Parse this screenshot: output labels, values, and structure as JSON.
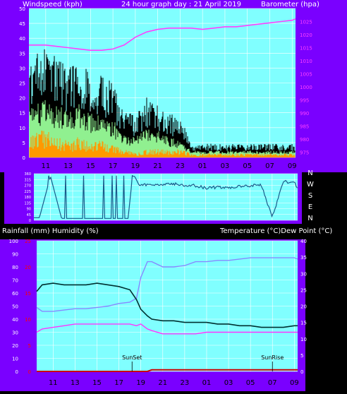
{
  "header": {
    "left": "Windspeed (kph)",
    "center": "24 hour graph day : 21 April 2019",
    "right": "Barometer (hpa)"
  },
  "time_labels": [
    "11",
    "13",
    "15",
    "17",
    "19",
    "21",
    "23",
    "01",
    "03",
    "05",
    "07",
    "09"
  ],
  "direction_labels": [
    "N",
    "W",
    "S",
    "E",
    "N"
  ],
  "bottom_header": {
    "left": "Rainfall (mm)  Humidity (%)",
    "right": "Temperature (°C)Dew Point (°C)"
  },
  "colors": {
    "frame": "#7a00ff",
    "plot_bg": "#80ffff",
    "axis_text": "#ffffff",
    "gust": "#000000",
    "avg_wind": "#90f090",
    "wind_min": "#ff9900",
    "barometer": "#ff40ff",
    "direction": "#1a5a8a",
    "humidity": "#8888ff",
    "temperature": "#003030",
    "dewpoint": "#ff33ff",
    "rain": "#cc0000",
    "red_axis": "#ff0000"
  },
  "chart_data": [
    {
      "type": "line",
      "title": "24 hour graph day : 21 April 2019",
      "ylabel": "Windspeed (kph)",
      "ylim": [
        0,
        50
      ],
      "y_ticks": [
        0,
        5,
        10,
        15,
        20,
        25,
        30,
        35,
        40,
        45,
        50
      ],
      "y2label": "Barometer (hpa)",
      "y2lim": [
        973,
        1030
      ],
      "y2_ticks": [
        975,
        980,
        985,
        990,
        995,
        1000,
        1005,
        1010,
        1015,
        1020,
        1025
      ],
      "x_hours": [
        9.5,
        10,
        11,
        12,
        13,
        14,
        15,
        16,
        17,
        18,
        19,
        20,
        21,
        22,
        23,
        24,
        25,
        26,
        27,
        28,
        29,
        30,
        31,
        32,
        33,
        33.3
      ],
      "series": [
        {
          "name": "Windspeed gust",
          "values": [
            28,
            32,
            34,
            30,
            27,
            30,
            26,
            24,
            22,
            15,
            12,
            18,
            16,
            13,
            12,
            4,
            4,
            4,
            4,
            4,
            4,
            4,
            4,
            4,
            4,
            4
          ]
        },
        {
          "name": "Average windspeed",
          "values": [
            15,
            17,
            18,
            16,
            14,
            16,
            13,
            12,
            11,
            7,
            6,
            9,
            8,
            6,
            5,
            2,
            2,
            2,
            2,
            2,
            2,
            2,
            2,
            2,
            2,
            2
          ]
        },
        {
          "name": "Windspeed min",
          "values": [
            5,
            6,
            7,
            5,
            4,
            5,
            4,
            4,
            3,
            2,
            1,
            2,
            2,
            2,
            2,
            1,
            1,
            1,
            1,
            1,
            1,
            1,
            1,
            1,
            1,
            1
          ]
        },
        {
          "name": "Barometer",
          "values": [
            1016,
            1016,
            1016,
            1015.5,
            1015,
            1014.5,
            1014,
            1014,
            1014.5,
            1016,
            1019,
            1021,
            1022,
            1022.5,
            1022.5,
            1022.5,
            1022,
            1022.5,
            1023,
            1023,
            1023.5,
            1024,
            1024.5,
            1025,
            1025.5,
            1026
          ]
        }
      ]
    },
    {
      "type": "line",
      "y_ticks": [
        0,
        45,
        90,
        135,
        180,
        225,
        270,
        315,
        360
      ],
      "ylim": [
        0,
        360
      ],
      "x_hours": [
        9.5,
        10,
        11,
        12,
        13,
        14,
        15,
        16,
        17,
        18,
        18.4,
        18.6,
        19,
        20,
        21,
        22,
        23,
        24,
        25,
        26,
        27,
        28,
        29,
        30,
        31,
        32,
        33,
        33.3
      ],
      "series": [
        {
          "name": "Wind direction",
          "values": [
            20,
            20,
            340,
            15,
            15,
            15,
            15,
            15,
            15,
            15,
            340,
            340,
            270,
            280,
            275,
            285,
            270,
            270,
            250,
            255,
            255,
            260,
            265,
            280,
            20,
            300,
            290,
            250
          ]
        }
      ]
    },
    {
      "type": "line",
      "ylim": [
        0,
        100
      ],
      "y_ticks": [
        0,
        10,
        20,
        30,
        40,
        50,
        60,
        70,
        80,
        90,
        100
      ],
      "y_red_ticks": [
        0,
        5,
        10,
        15,
        20,
        25
      ],
      "y2lim": [
        0,
        40
      ],
      "y2_ticks": [
        0,
        5,
        10,
        15,
        20,
        25,
        30,
        35,
        40
      ],
      "annotations": [
        "SunSet",
        "SunRise"
      ],
      "sunset_hour": 18.2,
      "sunrise_hour": 31.0,
      "x_hours": [
        9.5,
        10,
        11,
        12,
        13,
        14,
        15,
        16,
        17,
        18,
        18.6,
        19,
        19.6,
        20,
        21,
        22,
        23,
        24,
        25,
        26,
        27,
        28,
        29,
        30,
        31,
        32,
        33,
        33.3
      ],
      "series": [
        {
          "name": "Temperature",
          "values": [
            24.5,
            26.5,
            27,
            26.5,
            26.5,
            26.5,
            27,
            26.5,
            26,
            25,
            22,
            19,
            17,
            16,
            15.5,
            15.5,
            15,
            15,
            15,
            14.5,
            14.5,
            14,
            14,
            13.5,
            13.5,
            13.5,
            14,
            14
          ]
        },
        {
          "name": "Humidity",
          "values": [
            49,
            46,
            46,
            47,
            48,
            48,
            49,
            50,
            52,
            53,
            56,
            72,
            84,
            84,
            80,
            80,
            81,
            84,
            84,
            85,
            85,
            86,
            87,
            87,
            87,
            87,
            87,
            86
          ]
        },
        {
          "name": "Dew Point",
          "values": [
            12,
            13,
            13.5,
            14,
            14.5,
            14.5,
            14.5,
            14.5,
            14.5,
            14.5,
            14,
            14.5,
            13,
            12.5,
            11.5,
            11.5,
            11.5,
            11.5,
            12,
            12,
            12,
            12,
            12,
            12,
            12,
            12,
            12,
            12
          ]
        },
        {
          "name": "Rainfall",
          "values": [
            0,
            0,
            0,
            0,
            0,
            0,
            0,
            0,
            0,
            0,
            0,
            0,
            0,
            0.3,
            0.3,
            0.3,
            0.3,
            0.3,
            0.3,
            0.3,
            0.3,
            0.3,
            0.3,
            0.3,
            0.3,
            0.3,
            0.3,
            0.3
          ]
        }
      ]
    }
  ]
}
